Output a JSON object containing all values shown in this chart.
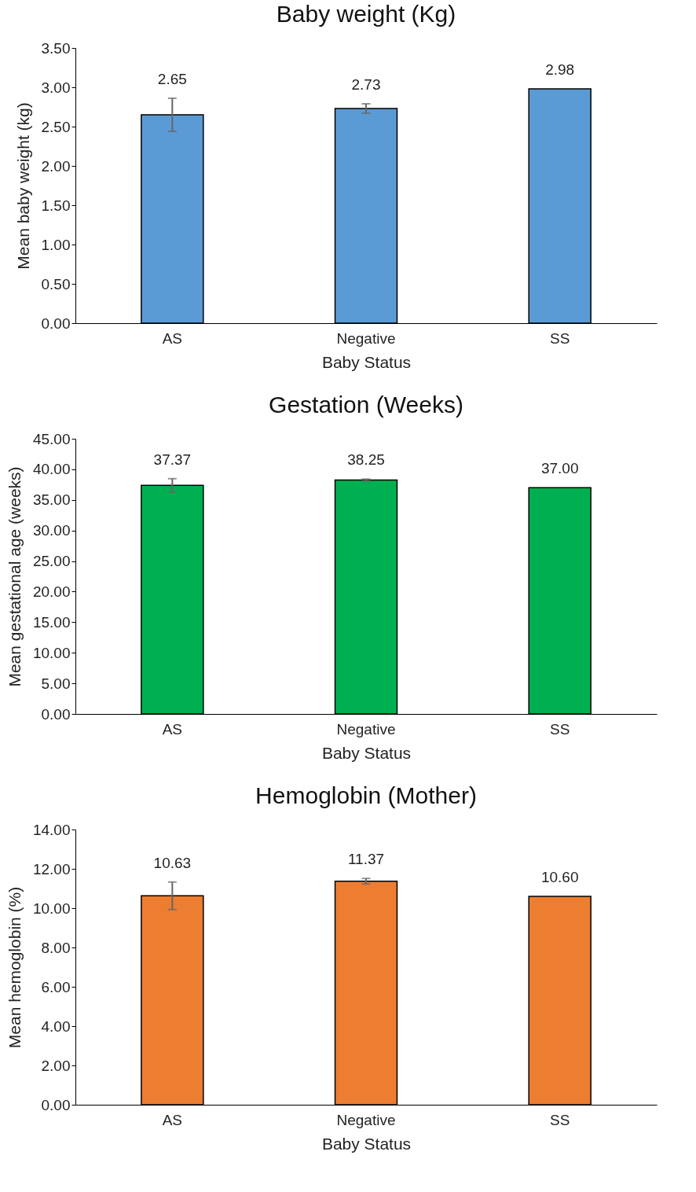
{
  "chart_data": [
    {
      "type": "bar",
      "title": "Baby weight (Kg)",
      "xlabel": "Baby Status",
      "ylabel": "Mean baby weight (kg)",
      "categories": [
        "AS",
        "Negative",
        "SS"
      ],
      "values": [
        2.65,
        2.73,
        2.98
      ],
      "errors": [
        0.21,
        0.06,
        null
      ],
      "value_labels": [
        "2.65",
        "2.73",
        "2.98"
      ],
      "color": "#5b9bd5",
      "ylim": [
        0,
        3.5
      ],
      "yticks": [
        {
          "value": 0,
          "label": "0.00"
        },
        {
          "value": 0.5,
          "label": "0.50"
        },
        {
          "value": 1,
          "label": "1.00"
        },
        {
          "value": 1.5,
          "label": "1.50"
        },
        {
          "value": 2,
          "label": "2.00"
        },
        {
          "value": 2.5,
          "label": "2.50"
        },
        {
          "value": 3,
          "label": "3.00"
        },
        {
          "value": 3.5,
          "label": "3.50"
        }
      ]
    },
    {
      "type": "bar",
      "title": "Gestation (Weeks)",
      "xlabel": "Baby Status",
      "ylabel": "Mean gestational age (weeks)",
      "categories": [
        "AS",
        "Negative",
        "SS"
      ],
      "values": [
        37.37,
        38.25,
        37.0
      ],
      "errors": [
        1.1,
        0.15,
        null
      ],
      "value_labels": [
        "37.37",
        "38.25",
        "37.00"
      ],
      "color": "#00b050",
      "ylim": [
        0,
        45
      ],
      "yticks": [
        {
          "value": 0,
          "label": "0.00"
        },
        {
          "value": 5,
          "label": "5.00"
        },
        {
          "value": 10,
          "label": "10.00"
        },
        {
          "value": 15,
          "label": "15.00"
        },
        {
          "value": 20,
          "label": "20.00"
        },
        {
          "value": 25,
          "label": "25.00"
        },
        {
          "value": 30,
          "label": "30.00"
        },
        {
          "value": 35,
          "label": "35.00"
        },
        {
          "value": 40,
          "label": "40.00"
        },
        {
          "value": 45,
          "label": "45.00"
        }
      ]
    },
    {
      "type": "bar",
      "title": "Hemoglobin (Mother)",
      "xlabel": "Baby Status",
      "ylabel": "Mean hemoglobin (%)",
      "categories": [
        "AS",
        "Negative",
        "SS"
      ],
      "values": [
        10.63,
        11.37,
        10.6
      ],
      "errors": [
        0.7,
        0.14,
        null
      ],
      "value_labels": [
        "10.63",
        "11.37",
        "10.60"
      ],
      "color": "#ed7d31",
      "ylim": [
        0,
        14
      ],
      "yticks": [
        {
          "value": 0,
          "label": "0.00"
        },
        {
          "value": 2,
          "label": "2.00"
        },
        {
          "value": 4,
          "label": "4.00"
        },
        {
          "value": 6,
          "label": "6.00"
        },
        {
          "value": 8,
          "label": "8.00"
        },
        {
          "value": 10,
          "label": "10.00"
        },
        {
          "value": 12,
          "label": "12.00"
        },
        {
          "value": 14,
          "label": "14.00"
        }
      ]
    }
  ]
}
